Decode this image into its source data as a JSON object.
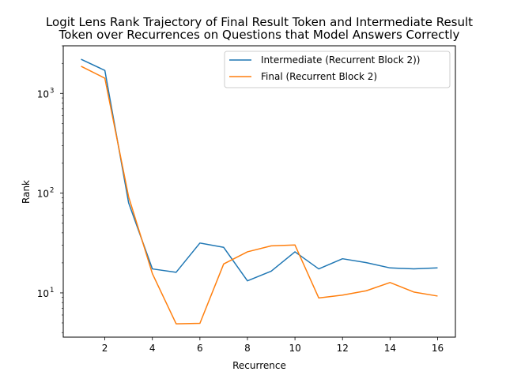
{
  "chart_data": {
    "type": "line",
    "title": [
      "Logit Lens Rank Trajectory of Final Result Token and Intermediate Result",
      "Token over Recurrences on Questions that Model Answers Correctly"
    ],
    "xlabel": "Recurrence",
    "ylabel": "Rank",
    "xlim": [
      0.25,
      16.75
    ],
    "ylim": [
      3.6,
      3000
    ],
    "yscale": "log",
    "xticks": [
      2,
      4,
      6,
      8,
      10,
      12,
      14,
      16
    ],
    "yticks": [
      {
        "value": 10,
        "label": "10",
        "exp": "1"
      },
      {
        "value": 100,
        "label": "10",
        "exp": "2"
      },
      {
        "value": 1000,
        "label": "10",
        "exp": "3"
      }
    ],
    "legend_position": "top-right",
    "grid": false,
    "x": [
      1,
      2,
      3,
      4,
      5,
      6,
      7,
      8,
      9,
      10,
      11,
      12,
      13,
      14,
      15,
      16
    ],
    "series": [
      {
        "name": "Intermediate (Recurrent Block 2))",
        "color": "#1f77b4",
        "values": [
          2200,
          1700,
          80,
          17.4,
          16.1,
          31.6,
          28.6,
          13.2,
          16.5,
          25.8,
          17.4,
          22.0,
          20.1,
          17.8,
          17.4,
          17.8
        ]
      },
      {
        "name": "Final (Recurrent Block 2)",
        "color": "#ff7f0e",
        "values": [
          1870,
          1420,
          92,
          15.6,
          4.9,
          4.95,
          19.5,
          25.8,
          29.6,
          30.2,
          8.9,
          9.5,
          10.5,
          12.7,
          10.2,
          9.3
        ]
      }
    ]
  }
}
